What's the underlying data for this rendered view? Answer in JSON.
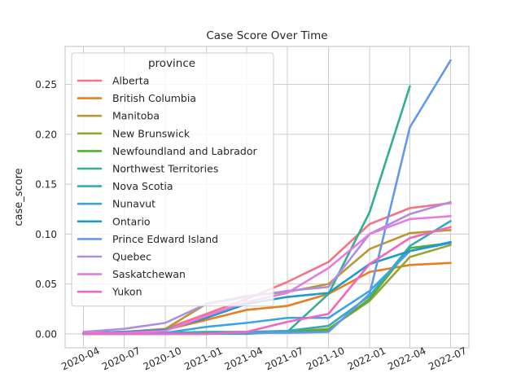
{
  "chart_data": {
    "type": "line",
    "title": "Case Score Over Time",
    "xlabel": "",
    "ylabel": "case_score",
    "x": [
      "2020-04-01",
      "2020-07-01",
      "2020-10-01",
      "2021-01-01",
      "2021-04-01",
      "2021-07-01",
      "2021-10-01",
      "2022-01-01",
      "2022-04-01",
      "2022-07-01"
    ],
    "x_ticks": [
      "2020-04",
      "2020-07",
      "2020-10",
      "2021-01",
      "2021-04",
      "2021-07",
      "2021-10",
      "2022-01",
      "2022-04",
      "2022-07"
    ],
    "ylim": [
      -0.014,
      0.288
    ],
    "y_ticks": [
      0.0,
      0.05,
      0.1,
      0.15,
      0.2,
      0.25
    ],
    "y_tick_labels": [
      "0.00",
      "0.05",
      "0.10",
      "0.15",
      "0.20",
      "0.25"
    ],
    "grid": true,
    "legend": {
      "title": "province",
      "position": "top-left"
    },
    "series": [
      {
        "name": "Alberta",
        "color": "#f77189",
        "x": [
          "2020-04-01",
          "2020-07-01",
          "2020-10-01",
          "2021-01-01",
          "2021-04-01",
          "2021-07-01",
          "2021-10-01",
          "2022-01-01",
          "2022-04-01",
          "2022-07-01"
        ],
        "values": [
          0.001,
          0.002,
          0.005,
          0.02,
          0.035,
          0.052,
          0.072,
          0.11,
          0.126,
          0.131
        ]
      },
      {
        "name": "British Columbia",
        "color": "#e5801a",
        "x": [
          "2020-04-01",
          "2020-07-01",
          "2020-10-01",
          "2021-01-01",
          "2021-04-01",
          "2021-07-01",
          "2021-10-01",
          "2022-01-01",
          "2022-04-01",
          "2022-07-01"
        ],
        "values": [
          0.001,
          0.002,
          0.004,
          0.014,
          0.024,
          0.028,
          0.04,
          0.062,
          0.069,
          0.071
        ]
      },
      {
        "name": "Manitoba",
        "color": "#bb9832",
        "x": [
          "2020-04-01",
          "2020-07-01",
          "2020-10-01",
          "2021-01-01",
          "2021-04-01",
          "2021-07-01",
          "2021-10-01",
          "2022-01-01",
          "2022-04-01",
          "2022-07-01"
        ],
        "values": [
          0.001,
          0.001,
          0.005,
          0.03,
          0.038,
          0.042,
          0.05,
          0.085,
          0.101,
          0.104
        ]
      },
      {
        "name": "New Brunswick",
        "color": "#97a431",
        "x": [
          "2020-04-01",
          "2020-07-01",
          "2020-10-01",
          "2021-01-01",
          "2021-04-01",
          "2021-07-01",
          "2021-10-01",
          "2022-01-01",
          "2022-04-01",
          "2022-07-01"
        ],
        "values": [
          0.0,
          0.0,
          0.0,
          0.001,
          0.001,
          0.002,
          0.005,
          0.033,
          0.077,
          0.089
        ]
      },
      {
        "name": "Newfoundland and Labrador",
        "color": "#50b131",
        "x": [
          "2020-04-01",
          "2020-07-01",
          "2020-10-01",
          "2021-01-01",
          "2021-04-01",
          "2021-07-01",
          "2021-10-01",
          "2022-01-01",
          "2022-04-01",
          "2022-07-01"
        ],
        "values": [
          0.0,
          0.0,
          0.0,
          0.0,
          0.001,
          0.002,
          0.004,
          0.035,
          0.086,
          0.091
        ]
      },
      {
        "name": "Northwest Territories",
        "color": "#34ae91",
        "x": [
          "2020-04-01",
          "2020-07-01",
          "2020-10-01",
          "2021-01-01",
          "2021-04-01",
          "2021-07-01",
          "2021-10-01",
          "2022-01-01",
          "2022-04-01"
        ],
        "values": [
          0.0,
          0.0,
          0.0,
          0.0,
          0.0,
          0.002,
          0.04,
          0.122,
          0.248
        ]
      },
      {
        "name": "Nova Scotia",
        "color": "#37abb5",
        "x": [
          "2020-04-01",
          "2020-07-01",
          "2020-10-01",
          "2021-01-01",
          "2021-04-01",
          "2021-07-01",
          "2021-10-01",
          "2022-01-01",
          "2022-04-01",
          "2022-07-01"
        ],
        "values": [
          0.001,
          0.001,
          0.001,
          0.002,
          0.002,
          0.003,
          0.008,
          0.038,
          0.088,
          0.113
        ]
      },
      {
        "name": "Nunavut",
        "color": "#3ba3ec",
        "x": [
          "2020-04-01",
          "2020-07-01",
          "2020-10-01",
          "2021-01-01",
          "2021-04-01",
          "2021-07-01",
          "2021-10-01",
          "2022-01-01",
          "2022-04-01",
          "2022-07-01"
        ],
        "values": [
          0.0,
          0.0,
          0.001,
          0.007,
          0.011,
          0.016,
          0.016,
          0.043,
          0.083,
          0.091
        ]
      },
      {
        "name": "Ontario",
        "color": "#1f9bc9",
        "x": [
          "2020-04-01",
          "2020-07-01",
          "2020-10-01",
          "2021-01-01",
          "2021-04-01",
          "2021-07-01",
          "2021-10-01",
          "2022-01-01",
          "2022-04-01",
          "2022-07-01"
        ],
        "values": [
          0.001,
          0.002,
          0.004,
          0.016,
          0.03,
          0.037,
          0.041,
          0.07,
          0.083,
          0.092
        ]
      },
      {
        "name": "Prince Edward Island",
        "color": "#6498ea",
        "x": [
          "2020-04-01",
          "2020-07-01",
          "2020-10-01",
          "2021-01-01",
          "2021-04-01",
          "2021-07-01",
          "2021-10-01",
          "2022-01-01",
          "2022-04-01",
          "2022-07-01"
        ],
        "values": [
          0.0,
          0.0,
          0.0,
          0.0,
          0.001,
          0.001,
          0.002,
          0.04,
          0.207,
          0.274
        ]
      },
      {
        "name": "Quebec",
        "color": "#ae8ee3",
        "x": [
          "2020-04-01",
          "2020-07-01",
          "2020-10-01",
          "2021-01-01",
          "2021-04-01",
          "2021-07-01",
          "2021-10-01",
          "2022-01-01",
          "2022-04-01",
          "2022-07-01"
        ],
        "values": [
          0.002,
          0.005,
          0.011,
          0.03,
          0.037,
          0.043,
          0.047,
          0.1,
          0.12,
          0.132
        ]
      },
      {
        "name": "Saskatchewan",
        "color": "#e57ae3",
        "x": [
          "2020-04-01",
          "2020-07-01",
          "2020-10-01",
          "2021-01-01",
          "2021-04-01",
          "2021-07-01",
          "2021-10-01",
          "2022-01-01",
          "2022-04-01",
          "2022-07-01"
        ],
        "values": [
          0.001,
          0.001,
          0.003,
          0.018,
          0.032,
          0.041,
          0.066,
          0.1,
          0.115,
          0.118
        ]
      },
      {
        "name": "Yukon",
        "color": "#f564c0",
        "x": [
          "2020-04-01",
          "2020-07-01",
          "2020-10-01",
          "2021-01-01",
          "2021-04-01",
          "2021-07-01",
          "2021-10-01",
          "2022-01-01",
          "2022-04-01",
          "2022-07-01"
        ],
        "values": [
          0.0,
          0.0,
          0.0,
          0.0,
          0.002,
          0.012,
          0.02,
          0.07,
          0.096,
          0.107
        ]
      }
    ]
  }
}
